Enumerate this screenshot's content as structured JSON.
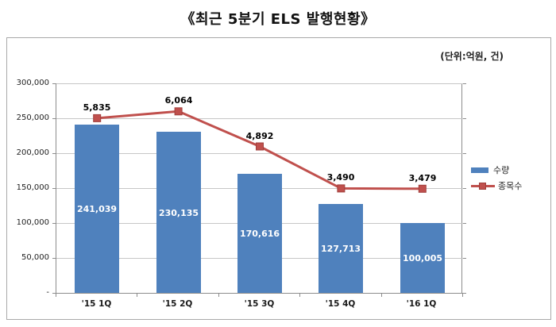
{
  "title": "《최근 5분기 ELS 발행현황》",
  "unit_label": "(단위:억원, 건)",
  "legend": [
    {
      "label": "수량",
      "type": "bar",
      "color": "#4f81bd"
    },
    {
      "label": "종목수",
      "type": "line",
      "color": "#c0504d"
    }
  ],
  "colors": {
    "bar": "#4f81bd",
    "line": "#c0504d",
    "marker_border": "#a03f3c",
    "gridline": "#c6c6c6",
    "axis": "#8c8c8c"
  },
  "chart_data": {
    "type": "bar+line combo",
    "categories": [
      "'15 1Q",
      "'15 2Q",
      "'15 3Q",
      "'15 4Q",
      "'16 1Q"
    ],
    "series": [
      {
        "name": "수량",
        "type": "bar",
        "color": "#4f81bd",
        "values": [
          241039,
          230135,
          170616,
          127713,
          100005
        ],
        "labels": [
          "241,039",
          "230,135",
          "170,616",
          "127,713",
          "100,005"
        ],
        "label_position": "inside-center",
        "axis": "primary"
      },
      {
        "name": "종목수",
        "type": "line",
        "color": "#c0504d",
        "marker": "square",
        "values": [
          5835,
          6064,
          4892,
          3490,
          3479
        ],
        "labels": [
          "5,835",
          "6,064",
          "4,892",
          "3,490",
          "3,479"
        ],
        "label_position": "above",
        "axis": "secondary"
      }
    ],
    "y_axis": {
      "min": 0,
      "max": 300000,
      "tick_step": 50000,
      "tick_labels": [
        "300,000",
        "250,000",
        "200,000",
        "150,000",
        "100,000",
        "50,000",
        "-"
      ]
    },
    "y2_axis": {
      "min": 0,
      "max": 7000,
      "labels_visible": false
    },
    "grid": true,
    "legend_position": "right"
  }
}
